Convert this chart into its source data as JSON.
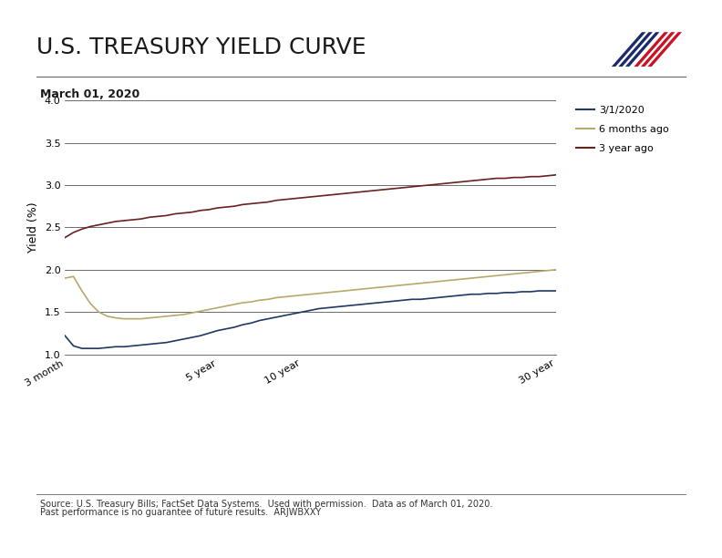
{
  "title": "U.S. TREASURY YIELD CURVE",
  "subtitle": "March 01, 2020",
  "ylabel": "Yield (%)",
  "background_color": "#ffffff",
  "ylim": [
    1.0,
    4.0
  ],
  "yticks": [
    1.0,
    1.5,
    2.0,
    2.5,
    3.0,
    3.5,
    4.0
  ],
  "xtick_labels": [
    "3 month",
    "5 year",
    "10 year",
    "30 year"
  ],
  "xtick_positions": [
    0,
    18,
    28,
    58
  ],
  "x_total": 58,
  "source_text1": "Source: U.S. Treasury Bills; FactSet Data Systems.  Used with permission.  Data as of March 01, 2020.",
  "source_text2": "Past performance is no guarantee of future results.  ARJWBXXY",
  "legend_labels": [
    "3/1/2020",
    "6 months ago",
    "3 year ago"
  ],
  "line_colors": [
    "#1f3864",
    "#b8a96a",
    "#6b2020"
  ],
  "series_today": [
    1.22,
    1.1,
    1.07,
    1.07,
    1.07,
    1.08,
    1.09,
    1.09,
    1.1,
    1.11,
    1.12,
    1.13,
    1.14,
    1.16,
    1.18,
    1.2,
    1.22,
    1.25,
    1.28,
    1.3,
    1.32,
    1.35,
    1.37,
    1.4,
    1.42,
    1.44,
    1.46,
    1.48,
    1.5,
    1.52,
    1.54,
    1.55,
    1.56,
    1.57,
    1.58,
    1.59,
    1.6,
    1.61,
    1.62,
    1.63,
    1.64,
    1.65,
    1.65,
    1.66,
    1.67,
    1.68,
    1.69,
    1.7,
    1.71,
    1.71,
    1.72,
    1.72,
    1.73,
    1.73,
    1.74,
    1.74,
    1.75,
    1.75,
    1.75
  ],
  "series_6mo": [
    1.9,
    1.92,
    1.75,
    1.6,
    1.5,
    1.45,
    1.43,
    1.42,
    1.42,
    1.42,
    1.43,
    1.44,
    1.45,
    1.46,
    1.47,
    1.49,
    1.51,
    1.53,
    1.55,
    1.57,
    1.59,
    1.61,
    1.62,
    1.64,
    1.65,
    1.67,
    1.68,
    1.69,
    1.7,
    1.71,
    1.72,
    1.73,
    1.74,
    1.75,
    1.76,
    1.77,
    1.78,
    1.79,
    1.8,
    1.81,
    1.82,
    1.83,
    1.84,
    1.85,
    1.86,
    1.87,
    1.88,
    1.89,
    1.9,
    1.91,
    1.92,
    1.93,
    1.94,
    1.95,
    1.96,
    1.97,
    1.98,
    1.99,
    2.0
  ],
  "series_3yr": [
    2.38,
    2.44,
    2.48,
    2.51,
    2.53,
    2.55,
    2.57,
    2.58,
    2.59,
    2.6,
    2.62,
    2.63,
    2.64,
    2.66,
    2.67,
    2.68,
    2.7,
    2.71,
    2.73,
    2.74,
    2.75,
    2.77,
    2.78,
    2.79,
    2.8,
    2.82,
    2.83,
    2.84,
    2.85,
    2.86,
    2.87,
    2.88,
    2.89,
    2.9,
    2.91,
    2.92,
    2.93,
    2.94,
    2.95,
    2.96,
    2.97,
    2.98,
    2.99,
    3.0,
    3.01,
    3.02,
    3.03,
    3.04,
    3.05,
    3.06,
    3.07,
    3.08,
    3.08,
    3.09,
    3.09,
    3.1,
    3.1,
    3.11,
    3.12
  ],
  "title_fontsize": 18,
  "subtitle_fontsize": 9,
  "axis_fontsize": 8,
  "source_fontsize": 7
}
